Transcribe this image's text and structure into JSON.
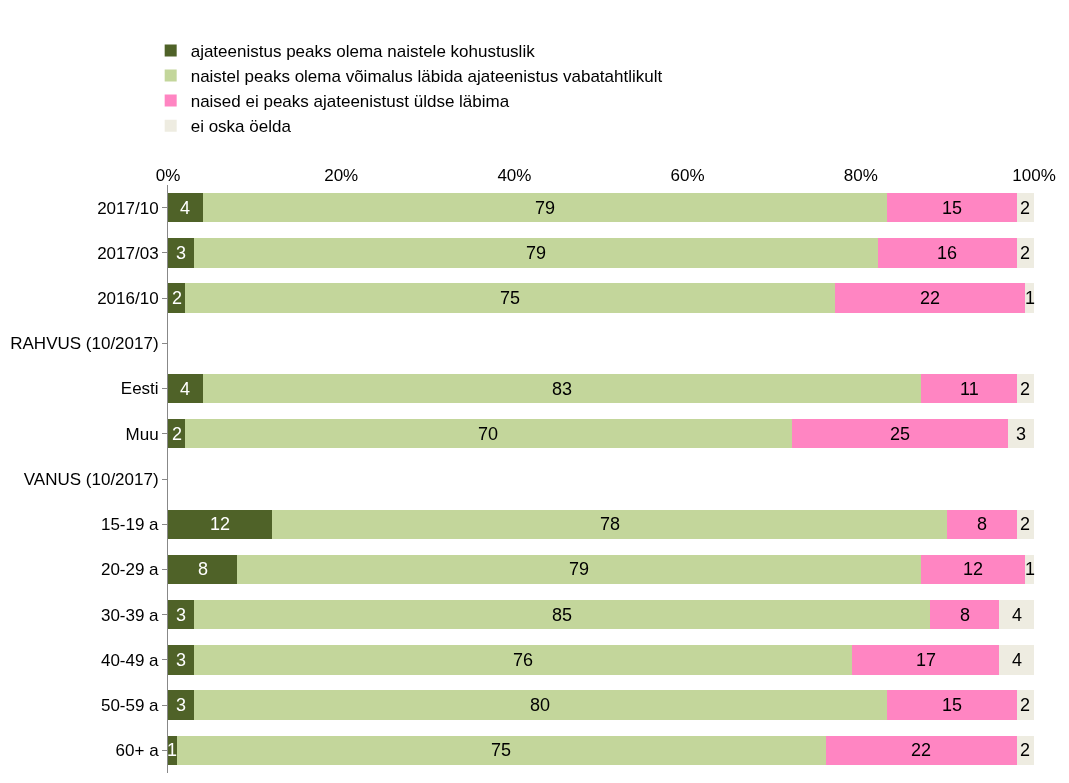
{
  "chart_data": {
    "type": "bar",
    "orientation": "horizontal",
    "stacked": true,
    "data_labels": true,
    "legend": "top",
    "categories": [
      "2017/10",
      "2017/03",
      "2016/10",
      "RAHVUS (10/2017)",
      "Eesti",
      "Muu",
      "VANUS (10/2017)",
      "15-19 a",
      "20-29 a",
      "30-39 a",
      "40-49 a",
      "50-59 a",
      "60+ a"
    ],
    "series": [
      {
        "name": "ajateenistus peaks olema naistele kohustuslik",
        "color": "#4f6228",
        "values": [
          4,
          3,
          2,
          null,
          4,
          2,
          null,
          12,
          8,
          3,
          3,
          3,
          1
        ]
      },
      {
        "name": "naistel peaks olema võimalus läbida ajateenistus vabatahtlikult",
        "color": "#c3d69b",
        "values": [
          79,
          79,
          75,
          null,
          83,
          70,
          null,
          78,
          79,
          85,
          76,
          80,
          75
        ]
      },
      {
        "name": "naised ei peaks ajateenistust üldse läbima",
        "color": "#ff85c2",
        "values": [
          15,
          16,
          22,
          null,
          11,
          25,
          null,
          8,
          12,
          8,
          17,
          15,
          22
        ]
      },
      {
        "name": "ei oska öelda",
        "color": "#eeece1",
        "values": [
          2,
          2,
          1,
          null,
          2,
          3,
          null,
          2,
          1,
          4,
          4,
          2,
          2
        ]
      }
    ],
    "xlim": [
      0,
      100
    ],
    "xticks": [
      {
        "value": 0,
        "label": "0%"
      },
      {
        "value": 20,
        "label": "20%"
      },
      {
        "value": 40,
        "label": "40%"
      },
      {
        "value": 60,
        "label": "60%"
      },
      {
        "value": 80,
        "label": "80%"
      },
      {
        "value": 100,
        "label": "100%"
      }
    ]
  }
}
